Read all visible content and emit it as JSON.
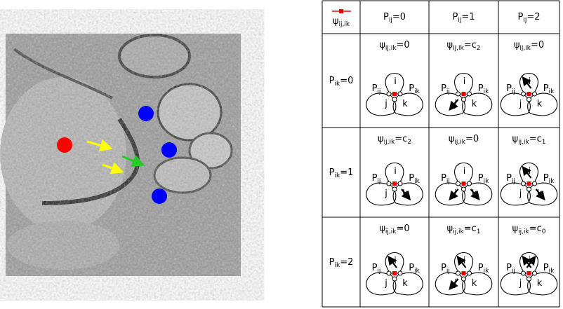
{
  "table": {
    "corner": {
      "base": "ψ",
      "sub": "ij,ik"
    },
    "columns": [
      {
        "base": "P",
        "sub": "ij",
        "rest": "=0"
      },
      {
        "base": "P",
        "sub": "ij",
        "rest": "=1"
      },
      {
        "base": "P",
        "sub": "ij",
        "rest": "=2"
      }
    ],
    "rows": [
      {
        "header": {
          "base": "P",
          "sub": "ik",
          "rest": "=0"
        },
        "cells": [
          {
            "base": "ψ",
            "sub": "ij,ik",
            "rest": "=0"
          },
          {
            "base": "ψ",
            "sub": "ij,ik",
            "rest": "=c",
            "rest_sub": "2"
          },
          {
            "base": "ψ",
            "sub": "ij,ik",
            "rest": "=0"
          }
        ]
      },
      {
        "header": {
          "base": "P",
          "sub": "ik",
          "rest": "=1"
        },
        "cells": [
          {
            "base": "ψ",
            "sub": "ij,ik",
            "rest": "=c",
            "rest_sub": "2"
          },
          {
            "base": "ψ",
            "sub": "ij,ik",
            "rest": "=0"
          },
          {
            "base": "ψ",
            "sub": "ij,ik",
            "rest": "=c",
            "rest_sub": "1"
          }
        ]
      },
      {
        "header": {
          "base": "P",
          "sub": "ik",
          "rest": "=2"
        },
        "cells": [
          {
            "base": "ψ",
            "sub": "ij,ik",
            "rest": "=0"
          },
          {
            "base": "ψ",
            "sub": "ij,ik",
            "rest": "=c",
            "rest_sub": "1"
          },
          {
            "base": "ψ",
            "sub": "ij,ik",
            "rest": "=c",
            "rest_sub": "0"
          }
        ]
      }
    ]
  },
  "diagram_labels": {
    "top": "i",
    "left": "j",
    "right": "k",
    "left_edge": {
      "base": "P",
      "sub": "ij"
    },
    "right_edge": {
      "base": "P",
      "sub": "ik"
    }
  }
}
